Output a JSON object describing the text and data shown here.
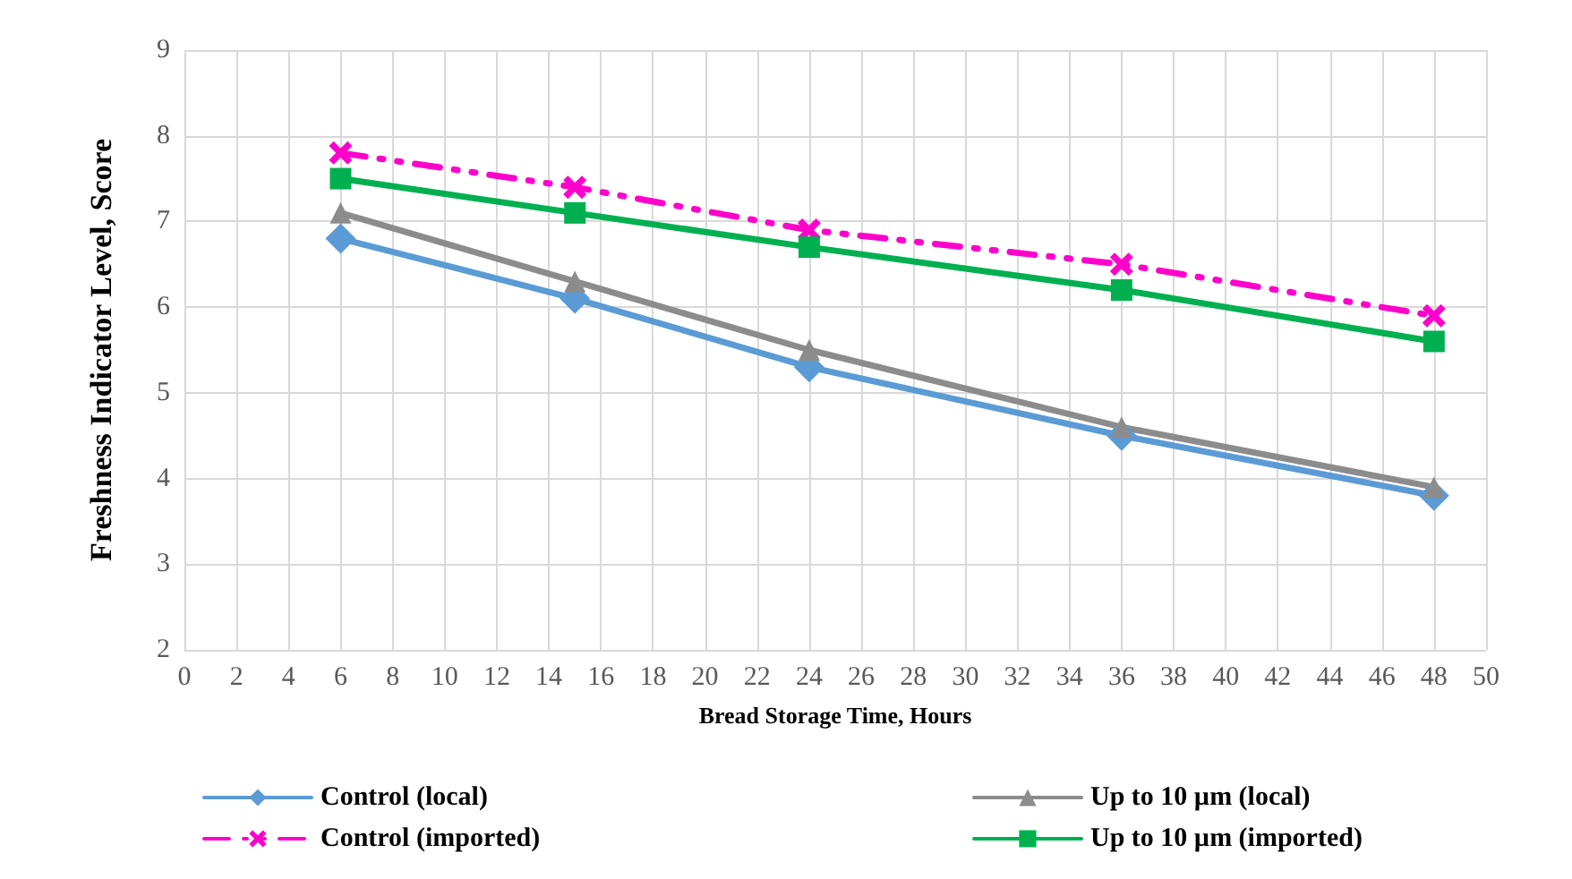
{
  "chart_data": {
    "type": "line",
    "xlabel": "Bread Storage Time, Hours",
    "ylabel": "Freshness Indicator Level, Score",
    "x": [
      6,
      15,
      24,
      36,
      48
    ],
    "series": [
      {
        "name": "Control (local)",
        "color": "#5b9bd5",
        "marker": "diamond",
        "line_style": "solid",
        "values": [
          6.8,
          6.1,
          5.3,
          4.5,
          3.8
        ]
      },
      {
        "name": "Control (imported)",
        "color": "#ff00cc",
        "marker": "cross",
        "line_style": "dashed",
        "values": [
          7.8,
          7.4,
          6.9,
          6.5,
          5.9
        ]
      },
      {
        "name": "Up to 10 µm (local)",
        "color": "#8c8c8c",
        "marker": "triangle",
        "line_style": "solid",
        "values": [
          7.1,
          6.3,
          5.5,
          4.6,
          3.9
        ]
      },
      {
        "name": "Up to 10 µm (imported)",
        "color": "#00b050",
        "marker": "square",
        "line_style": "solid",
        "values": [
          7.5,
          7.1,
          6.7,
          6.2,
          5.6
        ]
      }
    ],
    "xlim": [
      0,
      50
    ],
    "xticks": [
      0,
      2,
      4,
      6,
      8,
      10,
      12,
      14,
      16,
      18,
      20,
      22,
      24,
      26,
      28,
      30,
      32,
      34,
      36,
      38,
      40,
      42,
      44,
      46,
      48,
      50
    ],
    "ylim": [
      2,
      9
    ],
    "yticks": [
      2,
      3,
      4,
      5,
      6,
      7,
      8,
      9
    ],
    "grid": true,
    "legend": "bottom"
  }
}
